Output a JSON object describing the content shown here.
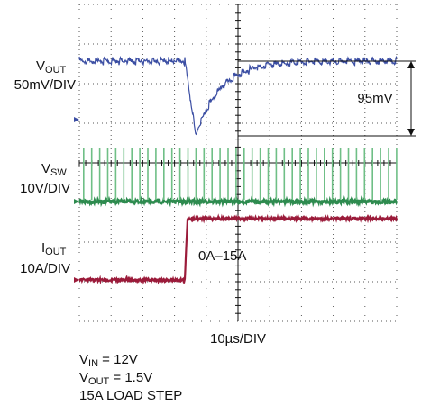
{
  "traces": [
    {
      "label": {
        "main": "V",
        "sub": "OUT"
      },
      "scale": "50mV/DIV"
    },
    {
      "label": {
        "main": "V",
        "sub": "SW"
      },
      "scale": "10V/DIV"
    },
    {
      "label": {
        "main": "I",
        "sub": "OUT"
      },
      "scale": "10A/DIV"
    }
  ],
  "annotations": {
    "step_delta": "95mV",
    "load_range": "0A–15A"
  },
  "timebase": "10µs/DIV",
  "conditions": [
    {
      "main": "V",
      "sub": "IN",
      "rest": " = 12V"
    },
    {
      "main": "V",
      "sub": "OUT",
      "rest": " = 1.5V"
    },
    {
      "main": "15A LOAD STEP"
    }
  ]
}
